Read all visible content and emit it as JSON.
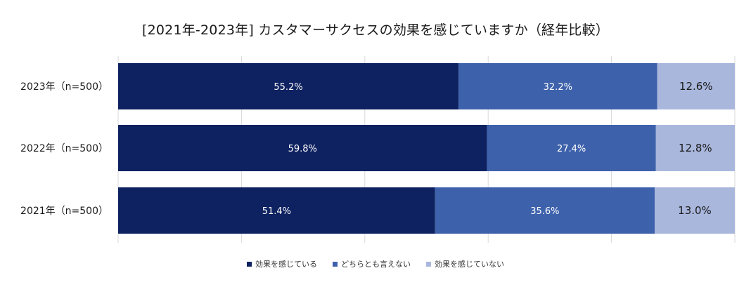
{
  "chart_data": {
    "type": "bar",
    "orientation": "horizontal",
    "stacked": true,
    "title": "[2021年-2023年] カスタマーサクセスの効果を感じていますか（経年比較）",
    "categories": [
      "2023年（n=500）",
      "2022年（n=500）",
      "2021年（n=500）"
    ],
    "series": [
      {
        "name": "効果を感じている",
        "values": [
          55.2,
          59.8,
          51.4
        ],
        "labels": [
          "55.2%",
          "59.8%",
          "51.4%"
        ],
        "color": "#0e2160",
        "label_color": "#ffffff"
      },
      {
        "name": "どちらとも言えない",
        "values": [
          32.2,
          27.4,
          35.6
        ],
        "labels": [
          "32.2%",
          "27.4%",
          "35.6%"
        ],
        "color": "#3d61ab",
        "label_color": "#ffffff"
      },
      {
        "name": "効果を感じていない",
        "values": [
          12.6,
          12.8,
          13.0
        ],
        "labels": [
          "12.6%",
          "12.8%",
          "13.0%"
        ],
        "color": "#a9b7dd",
        "label_color": "#1a1a1a"
      }
    ],
    "xlim": [
      0,
      100
    ],
    "grid": true,
    "grid_ticks": [
      0,
      20,
      40,
      60,
      80,
      100
    ],
    "legend_position": "bottom"
  }
}
